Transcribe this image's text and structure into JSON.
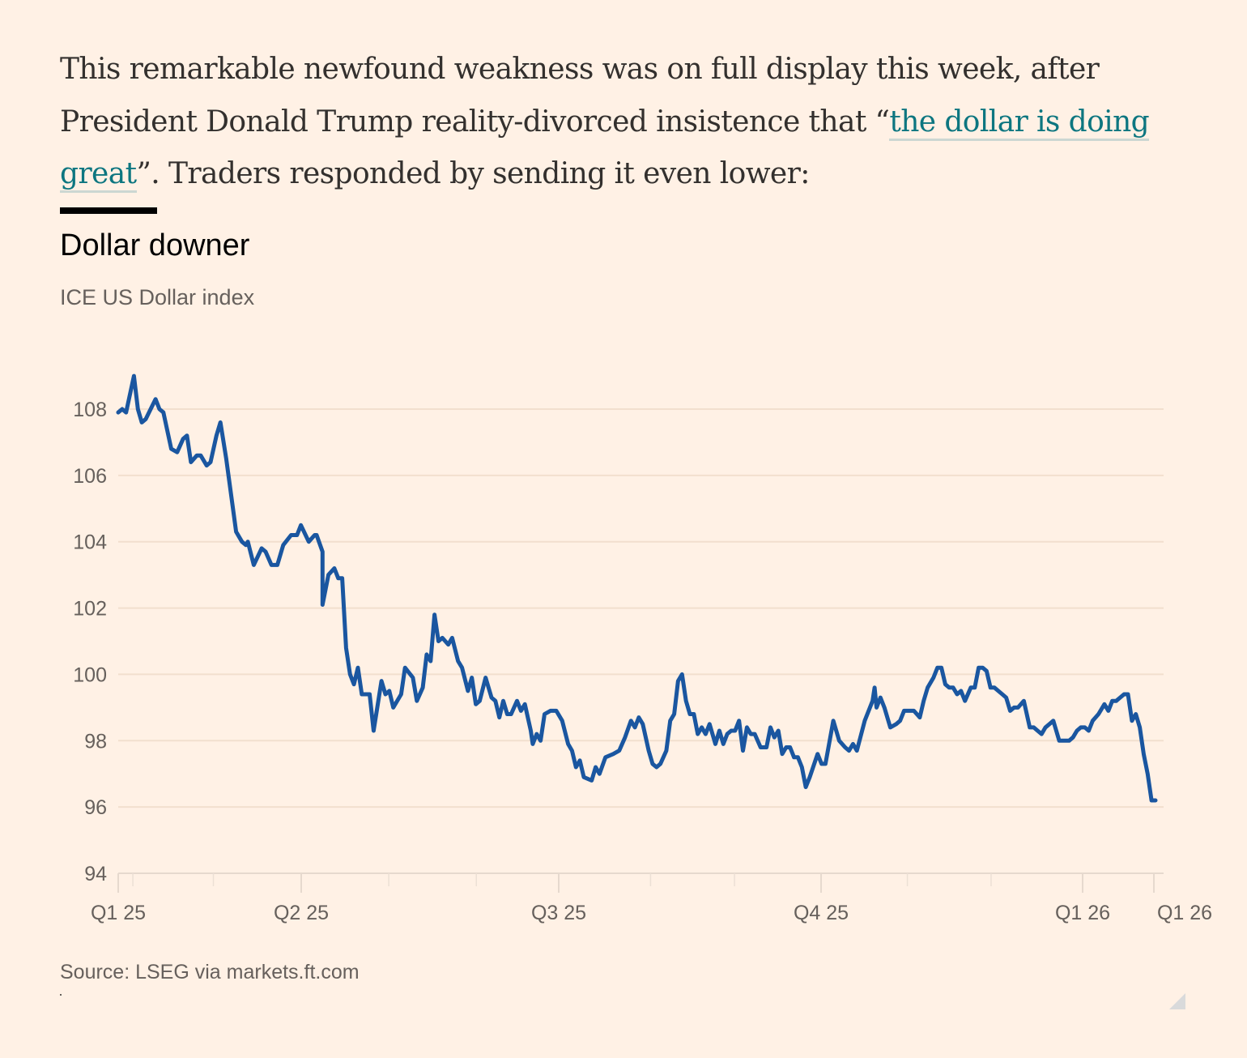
{
  "article": {
    "paragraph_before_link": "This remarkable newfound weakness was on full display this week, after President Donald Trump reality-divorced insistence that “",
    "link_text": "the dollar is doing great",
    "paragraph_after_link": "”. Traders responded by sending it even lower:"
  },
  "colors": {
    "background": "#fff1e5",
    "line": "#1a56a0",
    "link": "#0d7680",
    "text": "#33302e",
    "muted": "#66605c"
  },
  "chart_data": {
    "type": "line",
    "title": "Dollar downer",
    "subtitle": "ICE US Dollar index",
    "source": "Source: LSEG via markets.ft.com",
    "xlabel": "",
    "ylabel": "",
    "ylim": [
      94,
      109.2
    ],
    "yticks": [
      94,
      96,
      98,
      100,
      102,
      104,
      106,
      108
    ],
    "xticks": [
      {
        "label": "Q1 25",
        "q": 0
      },
      {
        "label": "Q2 25",
        "q": 1
      },
      {
        "label": "Q3 25",
        "q": 2
      },
      {
        "label": "Q4 25",
        "q": 3
      },
      {
        "label": "Q1 26",
        "q": 4
      },
      {
        "label": "Q1 26",
        "q": 4.27
      }
    ],
    "minor_ticks_q": [
      0.08,
      0.52,
      1.34,
      1.68,
      2.35,
      2.67,
      3.33,
      3.65
    ],
    "x_units": "quarters since start of Q1 2025",
    "grid": true,
    "legend": "none",
    "series": [
      {
        "name": "ICE US Dollar index",
        "points": [
          [
            0.0,
            107.9
          ],
          [
            0.02,
            108.0
          ],
          [
            0.04,
            107.9
          ],
          [
            0.08,
            109.0
          ],
          [
            0.1,
            108.0
          ],
          [
            0.12,
            107.6
          ],
          [
            0.14,
            107.7
          ],
          [
            0.19,
            108.3
          ],
          [
            0.21,
            108.0
          ],
          [
            0.23,
            107.9
          ],
          [
            0.27,
            106.8
          ],
          [
            0.3,
            106.7
          ],
          [
            0.33,
            107.1
          ],
          [
            0.35,
            107.2
          ],
          [
            0.37,
            106.4
          ],
          [
            0.4,
            106.6
          ],
          [
            0.42,
            106.6
          ],
          [
            0.45,
            106.3
          ],
          [
            0.47,
            106.4
          ],
          [
            0.5,
            107.2
          ],
          [
            0.52,
            107.6
          ],
          [
            0.55,
            106.5
          ],
          [
            0.6,
            104.3
          ],
          [
            0.63,
            104.0
          ],
          [
            0.65,
            103.9
          ],
          [
            0.66,
            104.0
          ],
          [
            0.69,
            103.3
          ],
          [
            0.73,
            103.8
          ],
          [
            0.75,
            103.7
          ],
          [
            0.78,
            103.3
          ],
          [
            0.81,
            103.3
          ],
          [
            0.84,
            103.9
          ],
          [
            0.88,
            104.2
          ],
          [
            0.91,
            104.2
          ],
          [
            0.93,
            104.5
          ],
          [
            0.97,
            104.0
          ],
          [
            1.0,
            104.2
          ],
          [
            1.01,
            104.2
          ],
          [
            1.04,
            103.7
          ],
          [
            1.04,
            102.1
          ],
          [
            1.07,
            103.0
          ],
          [
            1.1,
            103.2
          ],
          [
            1.12,
            102.9
          ],
          [
            1.14,
            102.9
          ],
          [
            1.16,
            100.8
          ],
          [
            1.18,
            100.0
          ],
          [
            1.2,
            99.7
          ],
          [
            1.22,
            100.2
          ],
          [
            1.24,
            99.4
          ],
          [
            1.28,
            99.4
          ],
          [
            1.3,
            98.3
          ],
          [
            1.34,
            99.8
          ],
          [
            1.36,
            99.4
          ],
          [
            1.38,
            99.5
          ],
          [
            1.4,
            99.0
          ],
          [
            1.44,
            99.4
          ],
          [
            1.46,
            100.2
          ],
          [
            1.5,
            99.9
          ],
          [
            1.52,
            99.2
          ],
          [
            1.55,
            99.6
          ],
          [
            1.57,
            100.6
          ],
          [
            1.59,
            100.4
          ],
          [
            1.61,
            101.8
          ],
          [
            1.63,
            101.0
          ],
          [
            1.65,
            101.1
          ],
          [
            1.68,
            100.9
          ],
          [
            1.7,
            101.1
          ],
          [
            1.73,
            100.4
          ],
          [
            1.75,
            100.2
          ],
          [
            1.78,
            99.5
          ],
          [
            1.8,
            99.9
          ],
          [
            1.82,
            99.1
          ],
          [
            1.84,
            99.2
          ],
          [
            1.87,
            99.9
          ],
          [
            1.9,
            99.3
          ],
          [
            1.92,
            99.2
          ],
          [
            1.94,
            98.7
          ],
          [
            1.96,
            99.2
          ],
          [
            1.98,
            98.8
          ],
          [
            2.0,
            98.8
          ],
          [
            2.03,
            99.2
          ],
          [
            2.05,
            98.9
          ],
          [
            2.07,
            99.1
          ],
          [
            2.1,
            98.3
          ],
          [
            2.11,
            97.9
          ],
          [
            2.13,
            98.2
          ],
          [
            2.15,
            98.0
          ],
          [
            2.17,
            98.8
          ],
          [
            2.2,
            98.9
          ],
          [
            2.23,
            98.9
          ],
          [
            2.26,
            98.6
          ],
          [
            2.29,
            97.9
          ],
          [
            2.31,
            97.7
          ],
          [
            2.33,
            97.2
          ],
          [
            2.35,
            97.4
          ],
          [
            2.37,
            96.9
          ],
          [
            2.41,
            96.8
          ],
          [
            2.43,
            97.2
          ],
          [
            2.45,
            97.0
          ],
          [
            2.48,
            97.5
          ],
          [
            2.52,
            97.6
          ],
          [
            2.55,
            97.7
          ],
          [
            2.58,
            98.1
          ],
          [
            2.61,
            98.6
          ],
          [
            2.63,
            98.4
          ],
          [
            2.65,
            98.7
          ],
          [
            2.67,
            98.5
          ],
          [
            2.7,
            97.7
          ],
          [
            2.72,
            97.3
          ],
          [
            2.74,
            97.2
          ],
          [
            2.76,
            97.3
          ],
          [
            2.79,
            97.7
          ],
          [
            2.81,
            98.6
          ],
          [
            2.83,
            98.8
          ],
          [
            2.85,
            99.8
          ],
          [
            2.87,
            100.0
          ],
          [
            2.89,
            99.2
          ],
          [
            2.91,
            98.8
          ],
          [
            2.93,
            98.8
          ],
          [
            2.95,
            98.2
          ],
          [
            2.97,
            98.4
          ],
          [
            2.99,
            98.2
          ],
          [
            3.01,
            98.5
          ],
          [
            3.04,
            97.9
          ],
          [
            3.06,
            98.3
          ],
          [
            3.08,
            97.9
          ],
          [
            3.1,
            98.2
          ],
          [
            3.12,
            98.3
          ],
          [
            3.14,
            98.3
          ],
          [
            3.16,
            98.6
          ],
          [
            3.18,
            97.7
          ],
          [
            3.2,
            98.4
          ],
          [
            3.22,
            98.2
          ],
          [
            3.24,
            98.2
          ],
          [
            3.27,
            97.8
          ],
          [
            3.3,
            97.8
          ],
          [
            3.32,
            98.4
          ],
          [
            3.34,
            98.1
          ],
          [
            3.36,
            98.3
          ],
          [
            3.38,
            97.6
          ],
          [
            3.4,
            97.8
          ],
          [
            3.42,
            97.8
          ],
          [
            3.44,
            97.5
          ],
          [
            3.46,
            97.5
          ],
          [
            3.48,
            97.2
          ],
          [
            3.5,
            96.6
          ],
          [
            3.52,
            96.9
          ],
          [
            3.56,
            97.6
          ],
          [
            3.58,
            97.3
          ],
          [
            3.6,
            97.3
          ],
          [
            3.64,
            98.6
          ],
          [
            3.67,
            98.0
          ],
          [
            3.7,
            97.8
          ],
          [
            3.72,
            97.7
          ],
          [
            3.74,
            97.9
          ],
          [
            3.76,
            97.7
          ],
          [
            3.8,
            98.6
          ],
          [
            3.84,
            99.2
          ],
          [
            3.85,
            99.6
          ],
          [
            3.86,
            99.0
          ],
          [
            3.88,
            99.3
          ],
          [
            3.9,
            99.0
          ],
          [
            3.93,
            98.4
          ],
          [
            3.96,
            98.5
          ],
          [
            3.98,
            98.6
          ],
          [
            4.0,
            98.9
          ],
          [
            4.02,
            98.9
          ],
          [
            4.05,
            98.9
          ],
          [
            4.08,
            98.7
          ],
          [
            4.1,
            99.2
          ],
          [
            4.12,
            99.6
          ],
          [
            4.15,
            99.9
          ],
          [
            4.17,
            100.2
          ],
          [
            4.19,
            100.2
          ],
          [
            4.21,
            99.7
          ],
          [
            4.23,
            99.6
          ],
          [
            4.25,
            99.6
          ],
          [
            4.27,
            99.4
          ],
          [
            4.29,
            99.5
          ],
          [
            4.31,
            99.2
          ],
          [
            4.34,
            99.6
          ],
          [
            4.36,
            99.6
          ],
          [
            4.38,
            100.2
          ],
          [
            4.4,
            100.2
          ],
          [
            4.42,
            100.1
          ],
          [
            4.44,
            99.6
          ],
          [
            4.46,
            99.6
          ],
          [
            4.48,
            99.5
          ],
          [
            4.5,
            99.4
          ],
          [
            4.52,
            99.3
          ],
          [
            4.54,
            98.9
          ],
          [
            4.56,
            99.0
          ],
          [
            4.58,
            99.0
          ],
          [
            4.61,
            99.2
          ],
          [
            4.64,
            98.4
          ],
          [
            4.66,
            98.4
          ],
          [
            4.68,
            98.3
          ],
          [
            4.7,
            98.2
          ],
          [
            4.72,
            98.4
          ],
          [
            4.74,
            98.5
          ],
          [
            4.76,
            98.6
          ],
          [
            4.79,
            98.0
          ],
          [
            4.82,
            98.0
          ],
          [
            4.84,
            98.0
          ],
          [
            4.86,
            98.1
          ],
          [
            4.88,
            98.3
          ],
          [
            4.9,
            98.4
          ],
          [
            4.92,
            98.4
          ],
          [
            4.94,
            98.3
          ],
          [
            4.96,
            98.6
          ],
          [
            4.99,
            98.8
          ],
          [
            5.02,
            99.1
          ],
          [
            5.04,
            98.9
          ],
          [
            5.06,
            99.2
          ],
          [
            5.08,
            99.2
          ],
          [
            5.1,
            99.3
          ],
          [
            5.12,
            99.4
          ],
          [
            5.14,
            99.4
          ],
          [
            5.16,
            98.6
          ],
          [
            5.18,
            98.8
          ],
          [
            5.2,
            98.4
          ],
          [
            5.22,
            97.6
          ],
          [
            5.24,
            97.0
          ],
          [
            5.26,
            96.2
          ],
          [
            5.28,
            96.2
          ]
        ]
      }
    ]
  }
}
